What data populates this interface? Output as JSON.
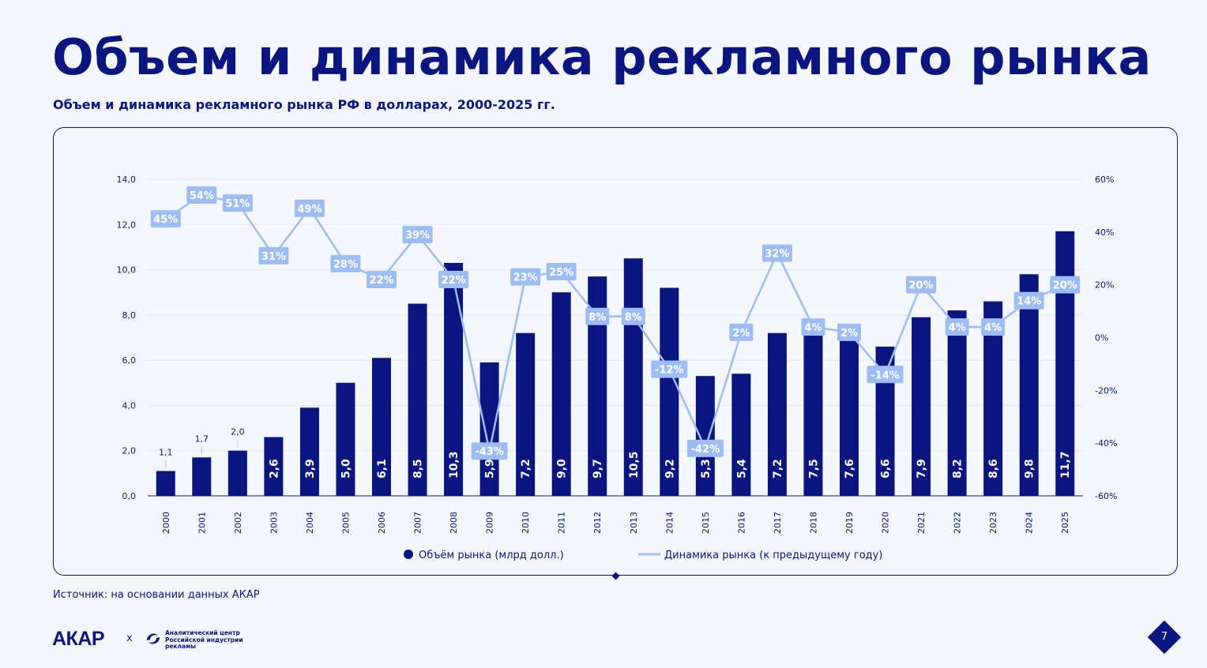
{
  "slide": {
    "title": "Объем и динамика рекламного рынка",
    "subtitle": "Объем и динамика рекламного рынка РФ в долларах, 2000-2025 гг.",
    "source": "Источник: на основании данных АКАР",
    "page_number": "7",
    "logo_akar": "АКАР",
    "logo_separator": "x",
    "logo_center_text": "Аналитический центр Российской индустрии рекламы"
  },
  "colors": {
    "bar": "#0a1580",
    "line": "#9fbdf5",
    "text": "#0a1580",
    "background": "#f4f7fd"
  },
  "chart_data": {
    "type": "bar",
    "categories": [
      "2000",
      "2001",
      "2002",
      "2003",
      "2004",
      "2005",
      "2006",
      "2007",
      "2008",
      "2009",
      "2010",
      "2011",
      "2012",
      "2013",
      "2014",
      "2015",
      "2016",
      "2017",
      "2018",
      "2019",
      "2020",
      "2021",
      "2022",
      "2023",
      "2024",
      "2025"
    ],
    "series": [
      {
        "name": "Объём рынка (млрд долл.)",
        "type": "bar",
        "axis": "left",
        "values": [
          1.1,
          1.7,
          2.0,
          2.6,
          3.9,
          5.0,
          6.1,
          8.5,
          10.3,
          5.9,
          7.2,
          9.0,
          9.7,
          10.5,
          9.2,
          5.3,
          5.4,
          7.2,
          7.5,
          7.6,
          6.6,
          7.9,
          8.2,
          8.6,
          9.8,
          11.7
        ],
        "labels": [
          "1,1",
          "1,7",
          "2,0",
          "2,6",
          "3,9",
          "5,0",
          "6,1",
          "8,5",
          "10,3",
          "5,9",
          "7,2",
          "9,0",
          "9,7",
          "10,5",
          "9,2",
          "5,3",
          "5,4",
          "7,2",
          "7,5",
          "7,6",
          "6,6",
          "7,9",
          "8,2",
          "8,6",
          "9,8",
          "11,7"
        ]
      },
      {
        "name": "Динамика рынка (к предыдущему году)",
        "type": "line",
        "axis": "right",
        "values": [
          45,
          54,
          51,
          31,
          49,
          28,
          22,
          39,
          22,
          -43,
          23,
          25,
          8,
          8,
          -12,
          -42,
          2,
          32,
          4,
          2,
          -14,
          20,
          4,
          4,
          14,
          20
        ],
        "labels": [
          "45%",
          "54%",
          "51%",
          "31%",
          "49%",
          "28%",
          "22%",
          "39%",
          "22%",
          "-43%",
          "23%",
          "25%",
          "8%",
          "8%",
          "-12%",
          "-42%",
          "2%",
          "32%",
          "4%",
          "2%",
          "-14%",
          "20%",
          "4%",
          "4%",
          "14%",
          "20%"
        ]
      }
    ],
    "y_left": {
      "range": [
        0,
        14
      ],
      "ticks": [
        0,
        2,
        4,
        6,
        8,
        10,
        12,
        14
      ],
      "tick_labels": [
        "0,0",
        "2,0",
        "4,0",
        "6,0",
        "8,0",
        "10,0",
        "12,0",
        "14,0"
      ]
    },
    "y_right": {
      "range": [
        -60,
        60
      ],
      "ticks": [
        -60,
        -40,
        -20,
        0,
        20,
        40,
        60
      ],
      "tick_labels": [
        "-60%",
        "-40%",
        "-20%",
        "0%",
        "20%",
        "40%",
        "60%"
      ]
    },
    "legend_position": "bottom-center",
    "grid": true
  }
}
